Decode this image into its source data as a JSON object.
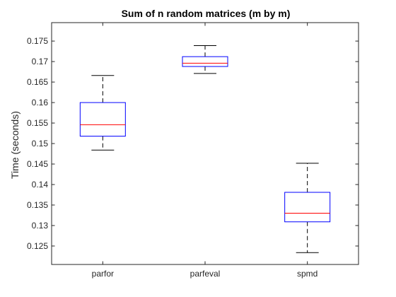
{
  "chart_data": {
    "type": "box",
    "title": "Sum of n random matrices (m by m)",
    "xlabel": "",
    "ylabel": "Time (seconds)",
    "ylim": [
      0.1205,
      0.1795
    ],
    "yticks": [
      0.125,
      0.13,
      0.135,
      0.14,
      0.145,
      0.15,
      0.155,
      0.16,
      0.165,
      0.17,
      0.175
    ],
    "ytick_labels": [
      "0.125",
      "0.13",
      "0.135",
      "0.14",
      "0.145",
      "0.15",
      "0.155",
      "0.16",
      "0.165",
      "0.17",
      "0.175"
    ],
    "categories": [
      "parfor",
      "parfeval",
      "spmd"
    ],
    "boxes": [
      {
        "category": "parfor",
        "whisker_low": 0.1484,
        "q1": 0.1518,
        "median": 0.1546,
        "q3": 0.16,
        "whisker_high": 0.1666
      },
      {
        "category": "parfeval",
        "whisker_low": 0.1671,
        "q1": 0.1688,
        "median": 0.1696,
        "q3": 0.1712,
        "whisker_high": 0.1739
      },
      {
        "category": "spmd",
        "whisker_low": 0.1234,
        "q1": 0.1309,
        "median": 0.133,
        "q3": 0.1381,
        "whisker_high": 0.1452
      }
    ],
    "grid": false,
    "colors": {
      "box": "#0000ff",
      "median": "#ff0000",
      "whisker": "#000000",
      "axis": "#262626"
    }
  }
}
